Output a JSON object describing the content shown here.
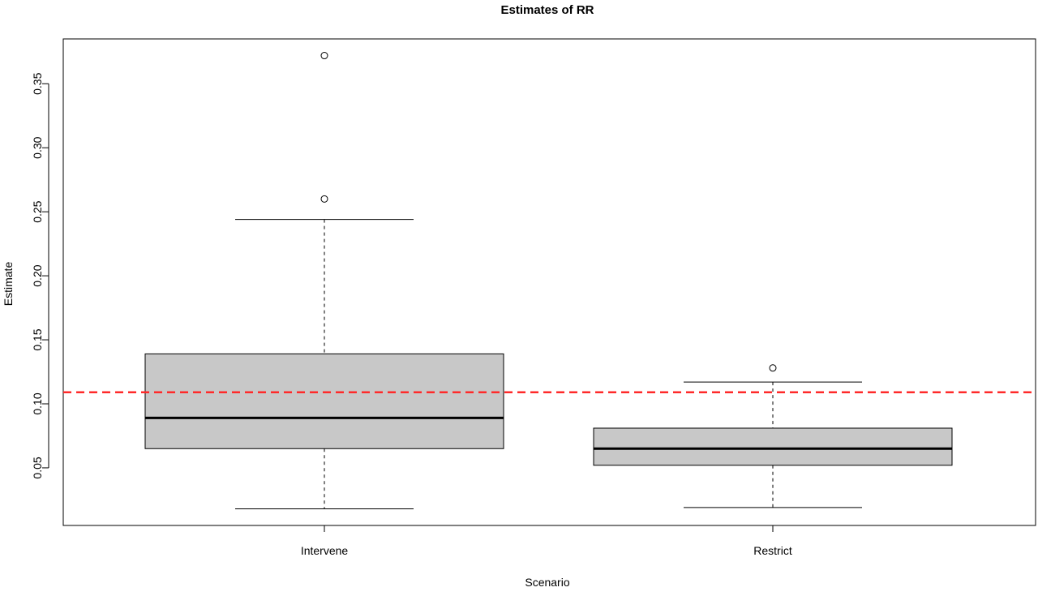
{
  "chart_data": {
    "type": "boxplot",
    "title": "Estimates of RR",
    "xlabel": "Scenario",
    "ylabel": "Estimate",
    "categories": [
      "Intervene",
      "Restrict"
    ],
    "ylim": [
      0.005,
      0.385
    ],
    "yticks": [
      0.05,
      0.1,
      0.15,
      0.2,
      0.25,
      0.3,
      0.35
    ],
    "ytick_labels": [
      "0.05",
      "0.10",
      "0.15",
      "0.20",
      "0.25",
      "0.30",
      "0.35"
    ],
    "grid": false,
    "legend": "none",
    "boxes": [
      {
        "category": "Intervene",
        "whisker_low": 0.018,
        "q1": 0.065,
        "median": 0.089,
        "q3": 0.139,
        "whisker_high": 0.244,
        "outliers": [
          0.26,
          0.372
        ]
      },
      {
        "category": "Restrict",
        "whisker_low": 0.019,
        "q1": 0.052,
        "median": 0.065,
        "q3": 0.081,
        "whisker_high": 0.117,
        "outliers": [
          0.128
        ]
      }
    ],
    "reference_line": {
      "value": 0.109,
      "style": "dashed",
      "color": "#ff2a2a"
    },
    "colors": {
      "box_fill": "#c8c8c8",
      "stroke": "#000000"
    }
  }
}
